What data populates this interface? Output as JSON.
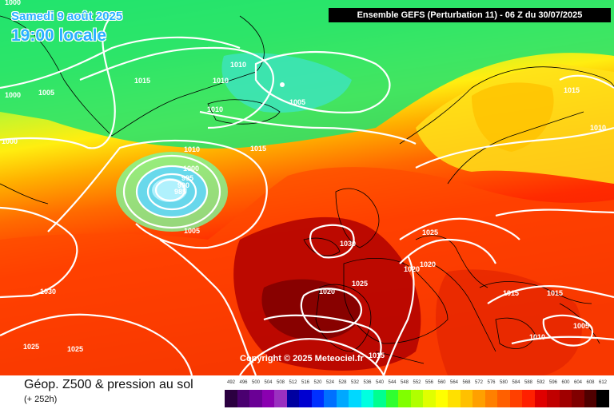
{
  "date_line": "Samedi 9 août 2025",
  "local_time": "19:00 locale",
  "header": "Ensemble GEFS  (Perturbation 11)  -  06 Z du 30/07/2025",
  "copyright": "Copyright © 2025 Meteociel.fr",
  "title": "Géop. Z500 & pression au sol",
  "lead": "(+ 252h)",
  "scale_values": [
    "492",
    "496",
    "500",
    "504",
    "508",
    "512",
    "516",
    "520",
    "524",
    "528",
    "532",
    "536",
    "540",
    "544",
    "548",
    "552",
    "556",
    "560",
    "564",
    "568",
    "572",
    "576",
    "580",
    "584",
    "588",
    "592",
    "596",
    "600",
    "604",
    "608",
    "612"
  ],
  "scale_colors": [
    "#2b0040",
    "#4a0070",
    "#6a0095",
    "#8a00b0",
    "#9a30c0",
    "#0000a0",
    "#0000d0",
    "#0030ff",
    "#0070ff",
    "#00a8ff",
    "#00d8ff",
    "#00ffe0",
    "#00ff90",
    "#30ff30",
    "#80ff00",
    "#b0ff00",
    "#e0ff00",
    "#ffff00",
    "#ffe000",
    "#ffc000",
    "#ffa000",
    "#ff8000",
    "#ff6000",
    "#ff4000",
    "#ff2000",
    "#e00000",
    "#c00000",
    "#a00000",
    "#800000",
    "#500000",
    "#000000"
  ],
  "isobar_labels": [
    "1000",
    "1005",
    "1015",
    "1010",
    "1010",
    "1005",
    "1015",
    "1010",
    "1000",
    "1010",
    "1015",
    "1010",
    "1000",
    "995",
    "990",
    "985",
    "1005",
    "1030",
    "1025",
    "1020",
    "1020",
    "1025",
    "1015",
    "1015",
    "1005",
    "1010",
    "1030",
    "1025",
    "1025",
    "1015",
    "1000"
  ]
}
